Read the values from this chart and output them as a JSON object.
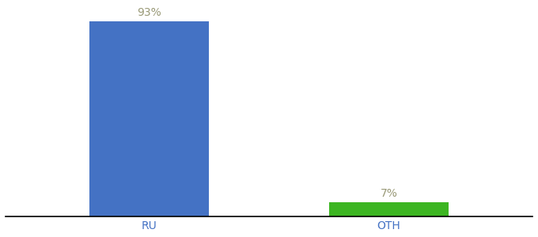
{
  "categories": [
    "RU",
    "OTH"
  ],
  "values": [
    93,
    7
  ],
  "bar_colors": [
    "#4472c4",
    "#3cb521"
  ],
  "label_texts": [
    "93%",
    "7%"
  ],
  "background_color": "#ffffff",
  "ylim": [
    0,
    100
  ],
  "bar_width": 0.5,
  "label_fontsize": 10,
  "tick_fontsize": 10,
  "tick_color": "#4472c4",
  "label_color": "#999977"
}
